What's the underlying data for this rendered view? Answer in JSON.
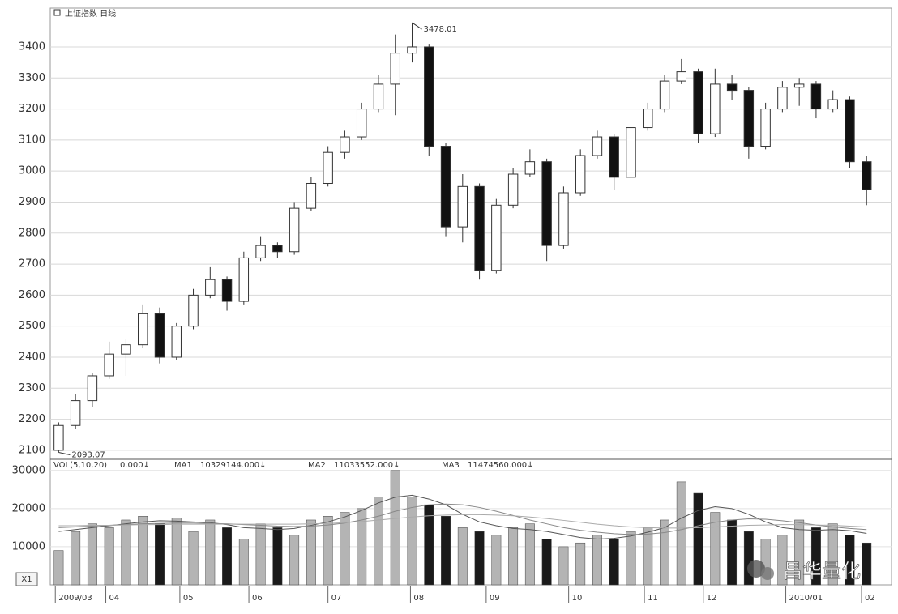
{
  "chart_data": [
    {
      "type": "candlestick",
      "title": "上证指数 日线",
      "x": [
        0,
        1,
        2,
        3,
        4,
        5,
        6,
        7,
        8,
        9,
        10,
        11,
        12,
        13,
        14,
        15,
        16,
        17,
        18,
        19,
        20,
        21,
        22,
        23,
        24,
        25,
        26,
        27,
        28,
        29,
        30,
        31,
        32,
        33,
        34,
        35,
        36,
        37,
        38,
        39,
        40,
        41,
        42,
        43,
        44,
        45,
        46,
        47,
        48
      ],
      "open": [
        2100,
        2180,
        2260,
        2340,
        2410,
        2440,
        2540,
        2400,
        2500,
        2600,
        2650,
        2580,
        2720,
        2760,
        2740,
        2880,
        2960,
        3060,
        3110,
        3200,
        3280,
        3380,
        3400,
        3080,
        2820,
        2950,
        2680,
        2890,
        2990,
        3030,
        2760,
        2930,
        3050,
        3110,
        2980,
        3140,
        3200,
        3290,
        3320,
        3120,
        3280,
        3260,
        3080,
        3200,
        3270,
        3280,
        3200,
        3230,
        3030
      ],
      "high": [
        2190,
        2280,
        2350,
        2450,
        2460,
        2570,
        2560,
        2510,
        2620,
        2690,
        2660,
        2740,
        2790,
        2770,
        2900,
        2980,
        3080,
        3130,
        3220,
        3310,
        3440,
        3478.01,
        3410,
        3090,
        2990,
        2960,
        2910,
        3010,
        3070,
        3040,
        2950,
        3070,
        3130,
        3120,
        3160,
        3220,
        3310,
        3361,
        3330,
        3330,
        3310,
        3270,
        3220,
        3290,
        3300,
        3290,
        3260,
        3240,
        3050
      ],
      "low": [
        2093.07,
        2170,
        2240,
        2330,
        2340,
        2430,
        2380,
        2390,
        2490,
        2590,
        2550,
        2570,
        2710,
        2720,
        2730,
        2870,
        2950,
        3040,
        3100,
        3190,
        3180,
        3350,
        3050,
        2790,
        2770,
        2650,
        2670,
        2880,
        2980,
        2710,
        2750,
        2920,
        3040,
        2940,
        2970,
        3130,
        3190,
        3280,
        3090,
        3110,
        3230,
        3040,
        3070,
        3190,
        3210,
        3170,
        3190,
        3010,
        2890
      ],
      "close": [
        2180,
        2260,
        2340,
        2410,
        2440,
        2540,
        2400,
        2500,
        2600,
        2650,
        2580,
        2720,
        2760,
        2740,
        2880,
        2960,
        3060,
        3110,
        3200,
        3280,
        3380,
        3400,
        3080,
        2820,
        2950,
        2680,
        2890,
        2990,
        3030,
        2760,
        2930,
        3050,
        3110,
        2980,
        3140,
        3200,
        3290,
        3320,
        3120,
        3280,
        3260,
        3080,
        3200,
        3270,
        3280,
        3200,
        3230,
        3030,
        2940
      ],
      "up_color": "#ffffff",
      "down_color": "#111111",
      "outline_color": "#333333",
      "annotations": [
        "3478.01",
        "2093.07"
      ],
      "xlim": [
        -0.5,
        49
      ],
      "ylim": [
        2071,
        3520
      ],
      "yticks": [
        2100,
        2200,
        2300,
        2400,
        2500,
        2600,
        2700,
        2800,
        2900,
        3000,
        3100,
        3200,
        3300,
        3400
      ],
      "grid": true
    },
    {
      "type": "bar",
      "indicator": "VOL(5,10,20)",
      "indicator_value": "0.000↓",
      "x": [
        0,
        1,
        2,
        3,
        4,
        5,
        6,
        7,
        8,
        9,
        10,
        11,
        12,
        13,
        14,
        15,
        16,
        17,
        18,
        19,
        20,
        21,
        22,
        23,
        24,
        25,
        26,
        27,
        28,
        29,
        30,
        31,
        32,
        33,
        34,
        35,
        36,
        37,
        38,
        39,
        40,
        41,
        42,
        43,
        44,
        45,
        46,
        47,
        48
      ],
      "values": [
        9000,
        14000,
        16000,
        15000,
        17000,
        18000,
        16000,
        17500,
        14000,
        17000,
        15000,
        12000,
        16000,
        15000,
        13000,
        17000,
        18000,
        19000,
        20000,
        23000,
        30000,
        23000,
        21000,
        18000,
        15000,
        14000,
        13000,
        15000,
        16000,
        12000,
        10000,
        11000,
        13000,
        12000,
        14000,
        15000,
        17000,
        27000,
        24000,
        19000,
        17000,
        14000,
        12000,
        13000,
        17000,
        15000,
        16000,
        13000,
        11000
      ],
      "up_color": "#b4b4b4",
      "down_color": "#1a1a1a",
      "series": [
        {
          "name": "MA1",
          "last_label": "10329144.000↓",
          "color": "#555555",
          "values": [
            14000,
            14500,
            15000,
            15500,
            16000,
            16500,
            16800,
            16700,
            16500,
            16300,
            15800,
            15000,
            14800,
            14500,
            14800,
            15600,
            16500,
            17800,
            19500,
            21500,
            23000,
            23500,
            22500,
            21000,
            18500,
            16500,
            15500,
            14800,
            14500,
            14000,
            13200,
            12400,
            12000,
            12200,
            12800,
            13800,
            15000,
            17500,
            19500,
            20500,
            20000,
            18500,
            16500,
            15000,
            14500,
            14300,
            14500,
            14200,
            13500
          ]
        },
        {
          "name": "MA2",
          "last_label": "11033552.000↓",
          "color": "#888888",
          "values": [
            15000,
            15200,
            15400,
            15600,
            15800,
            16000,
            16100,
            16200,
            16200,
            16100,
            16000,
            15800,
            15600,
            15400,
            15300,
            15400,
            15700,
            16200,
            17000,
            18000,
            19300,
            20300,
            21000,
            21200,
            21000,
            20300,
            19300,
            18200,
            17000,
            16000,
            15000,
            14300,
            13800,
            13400,
            13200,
            13300,
            13700,
            14500,
            15500,
            16400,
            17000,
            17300,
            17200,
            16800,
            16300,
            15700,
            15200,
            14800,
            14500
          ]
        },
        {
          "name": "MA3",
          "last_label": "11474560.000↓",
          "color": "#aaaaaa",
          "values": [
            15500,
            15500,
            15600,
            15600,
            15700,
            15800,
            15800,
            15900,
            15900,
            15900,
            15900,
            15900,
            15900,
            15900,
            15900,
            16000,
            16100,
            16300,
            16600,
            17000,
            17400,
            17800,
            18100,
            18300,
            18400,
            18400,
            18300,
            18100,
            17800,
            17400,
            16900,
            16400,
            15900,
            15500,
            15200,
            15000,
            14900,
            14900,
            15000,
            15200,
            15400,
            15600,
            15700,
            15800,
            15800,
            15700,
            15600,
            15400,
            15200
          ]
        }
      ],
      "xlim": [
        -0.5,
        49
      ],
      "ylim": [
        0,
        32500
      ],
      "yticks": [
        10000,
        20000,
        30000
      ],
      "xticks": [
        {
          "value": -0.2,
          "label": "2009/03"
        },
        {
          "value": 2.8,
          "label": "04"
        },
        {
          "value": 7.2,
          "label": "05"
        },
        {
          "value": 11.3,
          "label": "06"
        },
        {
          "value": 16.0,
          "label": "07"
        },
        {
          "value": 20.9,
          "label": "08"
        },
        {
          "value": 25.4,
          "label": "09"
        },
        {
          "value": 30.3,
          "label": "10"
        },
        {
          "value": 34.8,
          "label": "11"
        },
        {
          "value": 38.3,
          "label": "12"
        },
        {
          "value": 43.2,
          "label": "2010/01"
        },
        {
          "value": 47.7,
          "label": "02"
        }
      ],
      "grid": true
    }
  ],
  "ui": {
    "zoom_button": "X1",
    "watermark": "昌华量化"
  }
}
